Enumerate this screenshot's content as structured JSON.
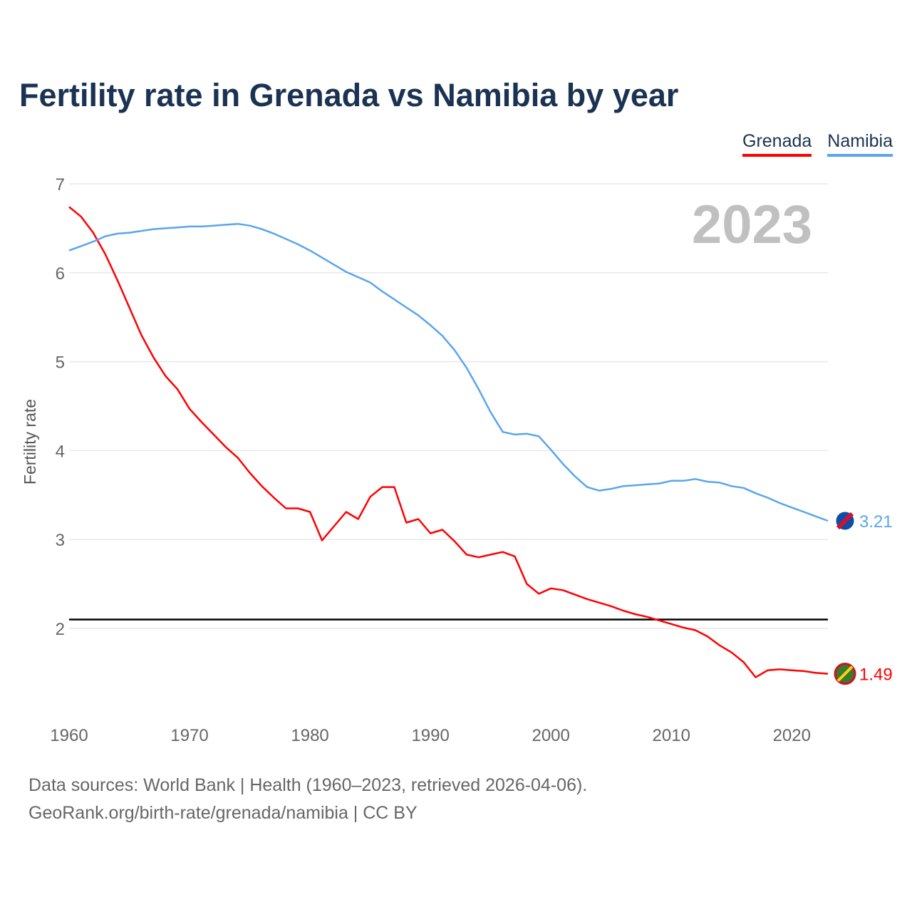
{
  "title": "Fertility rate in Grenada vs Namibia by year",
  "footer": {
    "line1": "Data sources: World Bank | Health (1960–2023, retrieved 2026-04-06).",
    "line2": "GeoRank.org/birth-rate/grenada/namibia | CC BY"
  },
  "chart_data": {
    "type": "line",
    "title": "Fertility rate in Grenada vs Namibia by year",
    "ylabel": "Fertility rate",
    "xlabel": "",
    "year_label": "2023",
    "xlim": [
      1960,
      2023
    ],
    "ylim": [
      1,
      7
    ],
    "x_ticks": [
      "1960",
      "1970",
      "1980",
      "1990",
      "2000",
      "2010",
      "2020"
    ],
    "y_ticks": [
      "2",
      "3",
      "4",
      "5",
      "6",
      "7"
    ],
    "grid": true,
    "legend_position": "top-right",
    "reference_line": {
      "value": 2.1,
      "color": "#000000"
    },
    "x": [
      1960,
      1961,
      1962,
      1963,
      1964,
      1965,
      1966,
      1967,
      1968,
      1969,
      1970,
      1971,
      1972,
      1973,
      1974,
      1975,
      1976,
      1977,
      1978,
      1979,
      1980,
      1981,
      1982,
      1983,
      1984,
      1985,
      1986,
      1987,
      1988,
      1989,
      1990,
      1991,
      1992,
      1993,
      1994,
      1995,
      1996,
      1997,
      1998,
      1999,
      2000,
      2001,
      2002,
      2003,
      2004,
      2005,
      2006,
      2007,
      2008,
      2009,
      2010,
      2011,
      2012,
      2013,
      2014,
      2015,
      2016,
      2017,
      2018,
      2019,
      2020,
      2021,
      2022,
      2023
    ],
    "series": [
      {
        "name": "Grenada",
        "color": "#ff0000",
        "end_label": "1.49",
        "values": [
          6.74,
          6.63,
          6.45,
          6.21,
          5.92,
          5.61,
          5.3,
          5.05,
          4.84,
          4.69,
          4.47,
          4.32,
          4.18,
          4.04,
          3.92,
          3.75,
          3.6,
          3.47,
          3.35,
          3.35,
          3.31,
          2.99,
          3.15,
          3.31,
          3.23,
          3.48,
          3.59,
          3.59,
          3.19,
          3.23,
          3.07,
          3.11,
          2.98,
          2.83,
          2.8,
          2.83,
          2.86,
          2.81,
          2.5,
          2.39,
          2.45,
          2.43,
          2.38,
          2.33,
          2.29,
          2.25,
          2.2,
          2.16,
          2.13,
          2.09,
          2.05,
          2.01,
          1.98,
          1.91,
          1.81,
          1.73,
          1.62,
          1.45,
          1.53,
          1.54,
          1.53,
          1.52,
          1.5,
          1.49
        ]
      },
      {
        "name": "Namibia",
        "color": "#5aa5ec",
        "end_label": "3.21",
        "values": [
          6.25,
          6.3,
          6.35,
          6.41,
          6.44,
          6.45,
          6.47,
          6.49,
          6.5,
          6.51,
          6.52,
          6.52,
          6.53,
          6.54,
          6.55,
          6.53,
          6.49,
          6.44,
          6.38,
          6.32,
          6.25,
          6.17,
          6.09,
          6.01,
          5.95,
          5.89,
          5.79,
          5.7,
          5.61,
          5.52,
          5.41,
          5.29,
          5.13,
          4.93,
          4.69,
          4.43,
          4.21,
          4.18,
          4.19,
          4.16,
          4.01,
          3.85,
          3.71,
          3.59,
          3.55,
          3.57,
          3.6,
          3.61,
          3.62,
          3.63,
          3.66,
          3.66,
          3.68,
          3.65,
          3.64,
          3.6,
          3.58,
          3.52,
          3.47,
          3.41,
          3.36,
          3.31,
          3.26,
          3.21
        ]
      }
    ]
  }
}
